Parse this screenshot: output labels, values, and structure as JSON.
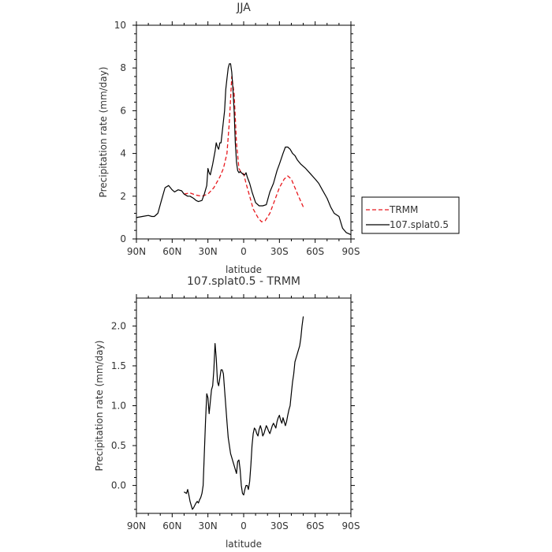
{
  "chart_data": [
    {
      "type": "line",
      "title": "JJA",
      "xlabel": "latitude",
      "ylabel": "Precipitation rate (mm/day)",
      "xlim": [
        90,
        -90
      ],
      "ylim": [
        0,
        10
      ],
      "x_ticks": [
        90,
        60,
        30,
        0,
        -30,
        -60,
        -90
      ],
      "x_tick_labels": [
        "90N",
        "60N",
        "30N",
        "0",
        "30S",
        "60S",
        "90S"
      ],
      "y_ticks": [
        0,
        2,
        4,
        6,
        8,
        10
      ],
      "y_tick_labels": [
        "0",
        "2",
        "4",
        "6",
        "8",
        "10"
      ],
      "grid": false,
      "legend_position": "right",
      "series": [
        {
          "name": "TRMM",
          "color": "#e8191e",
          "dash": true,
          "x": [
            50,
            45,
            40,
            35,
            30,
            25,
            20,
            17,
            14,
            12,
            10,
            8,
            6,
            4,
            2,
            0,
            -2,
            -5,
            -8,
            -12,
            -15,
            -18,
            -22,
            -26,
            -30,
            -34,
            -37,
            -40,
            -43,
            -46,
            -50
          ],
          "y": [
            2.1,
            2.15,
            2.05,
            2.0,
            2.1,
            2.4,
            2.9,
            3.3,
            4.0,
            5.5,
            7.6,
            6.8,
            4.5,
            3.3,
            3.1,
            3.05,
            2.6,
            2.0,
            1.4,
            1.0,
            0.8,
            0.85,
            1.2,
            1.8,
            2.4,
            2.8,
            2.95,
            2.8,
            2.4,
            2.0,
            1.5
          ]
        },
        {
          "name": "107.splat0.5",
          "color": "#000000",
          "dash": false,
          "x": [
            90,
            85,
            80,
            77,
            75,
            72,
            69,
            66,
            63,
            60,
            58,
            55,
            52,
            50,
            47,
            45,
            42,
            40,
            38,
            35,
            33,
            31,
            30,
            29,
            28,
            26,
            25,
            24,
            23,
            22,
            21,
            20,
            19,
            18,
            17,
            16,
            15,
            14,
            13,
            12,
            11,
            10,
            9,
            8,
            7,
            6,
            5,
            4,
            3,
            2,
            1,
            0,
            -1,
            -2,
            -3,
            -5,
            -7,
            -10,
            -13,
            -16,
            -19,
            -22,
            -25,
            -28,
            -30,
            -33,
            -35,
            -37,
            -39,
            -41,
            -43,
            -45,
            -48,
            -52,
            -56,
            -60,
            -63,
            -66,
            -70,
            -73,
            -76,
            -80,
            -83,
            -86,
            -90
          ],
          "y": [
            1.0,
            1.05,
            1.1,
            1.05,
            1.05,
            1.2,
            1.8,
            2.4,
            2.5,
            2.3,
            2.2,
            2.3,
            2.25,
            2.1,
            2.0,
            2.0,
            1.9,
            1.8,
            1.75,
            1.8,
            2.1,
            2.5,
            3.3,
            3.1,
            3.0,
            3.5,
            3.8,
            4.1,
            4.5,
            4.3,
            4.2,
            4.5,
            4.5,
            5.0,
            5.5,
            6.0,
            7.0,
            7.5,
            8.0,
            8.2,
            8.2,
            7.8,
            7.0,
            6.0,
            4.5,
            3.6,
            3.2,
            3.1,
            3.15,
            3.1,
            3.05,
            3.0,
            3.0,
            3.1,
            2.9,
            2.6,
            2.2,
            1.7,
            1.55,
            1.55,
            1.6,
            2.2,
            2.6,
            3.2,
            3.5,
            4.0,
            4.3,
            4.3,
            4.2,
            4.0,
            3.9,
            3.7,
            3.5,
            3.3,
            3.05,
            2.8,
            2.6,
            2.3,
            1.9,
            1.5,
            1.2,
            1.05,
            0.5,
            0.3,
            0.2
          ]
        }
      ]
    },
    {
      "type": "line",
      "title": "107.splat0.5 - TRMM",
      "xlabel": "latitude",
      "ylabel": "Precipitation rate (mm/day)",
      "xlim": [
        90,
        -90
      ],
      "ylim": [
        -0.35,
        2.35
      ],
      "x_ticks": [
        90,
        60,
        30,
        0,
        -30,
        -60,
        -90
      ],
      "x_tick_labels": [
        "90N",
        "60N",
        "30N",
        "0",
        "30S",
        "60S",
        "90S"
      ],
      "y_ticks": [
        0.0,
        0.5,
        1.0,
        1.5,
        2.0
      ],
      "y_tick_labels": [
        "0.0",
        "0.5",
        "1.0",
        "1.5",
        "2.0"
      ],
      "grid": false,
      "series": [
        {
          "color": "#000000",
          "dash": false,
          "x": [
            50,
            48,
            47,
            46,
            45,
            44,
            43,
            42,
            41,
            40,
            39,
            38,
            37,
            36,
            35,
            34,
            33,
            32,
            31,
            30,
            29,
            28,
            27,
            26,
            25,
            24,
            23,
            22,
            21,
            20,
            19,
            18,
            17,
            16,
            15,
            14,
            13,
            12,
            11,
            10,
            9,
            8,
            7,
            6,
            5,
            4,
            3,
            2,
            1,
            0,
            -1,
            -2,
            -3,
            -4,
            -5,
            -6,
            -7,
            -8,
            -9,
            -10,
            -11,
            -12,
            -13,
            -14,
            -15,
            -16,
            -17,
            -18,
            -19,
            -20,
            -21,
            -22,
            -23,
            -24,
            -25,
            -26,
            -27,
            -28,
            -29,
            -30,
            -31,
            -32,
            -33,
            -34,
            -35,
            -36,
            -37,
            -38,
            -39,
            -40,
            -41,
            -42,
            -43,
            -44,
            -45,
            -46,
            -47,
            -48,
            -49,
            -50
          ],
          "y": [
            -0.08,
            -0.1,
            -0.05,
            -0.12,
            -0.2,
            -0.25,
            -0.3,
            -0.28,
            -0.25,
            -0.22,
            -0.2,
            -0.22,
            -0.18,
            -0.15,
            -0.1,
            0.0,
            0.4,
            0.8,
            1.15,
            1.1,
            0.9,
            1.05,
            1.2,
            1.25,
            1.45,
            1.78,
            1.6,
            1.3,
            1.25,
            1.35,
            1.45,
            1.45,
            1.4,
            1.2,
            1.0,
            0.8,
            0.6,
            0.5,
            0.4,
            0.35,
            0.3,
            0.25,
            0.2,
            0.15,
            0.3,
            0.32,
            0.2,
            0.0,
            -0.1,
            -0.12,
            -0.05,
            0.0,
            0.0,
            -0.05,
            0.05,
            0.25,
            0.5,
            0.65,
            0.72,
            0.7,
            0.65,
            0.62,
            0.7,
            0.75,
            0.7,
            0.62,
            0.65,
            0.7,
            0.75,
            0.72,
            0.68,
            0.65,
            0.7,
            0.75,
            0.78,
            0.75,
            0.72,
            0.8,
            0.85,
            0.88,
            0.82,
            0.78,
            0.85,
            0.8,
            0.75,
            0.8,
            0.88,
            0.95,
            1.0,
            1.15,
            1.3,
            1.4,
            1.55,
            1.6,
            1.65,
            1.7,
            1.75,
            1.85,
            2.0,
            2.12
          ]
        }
      ]
    }
  ]
}
